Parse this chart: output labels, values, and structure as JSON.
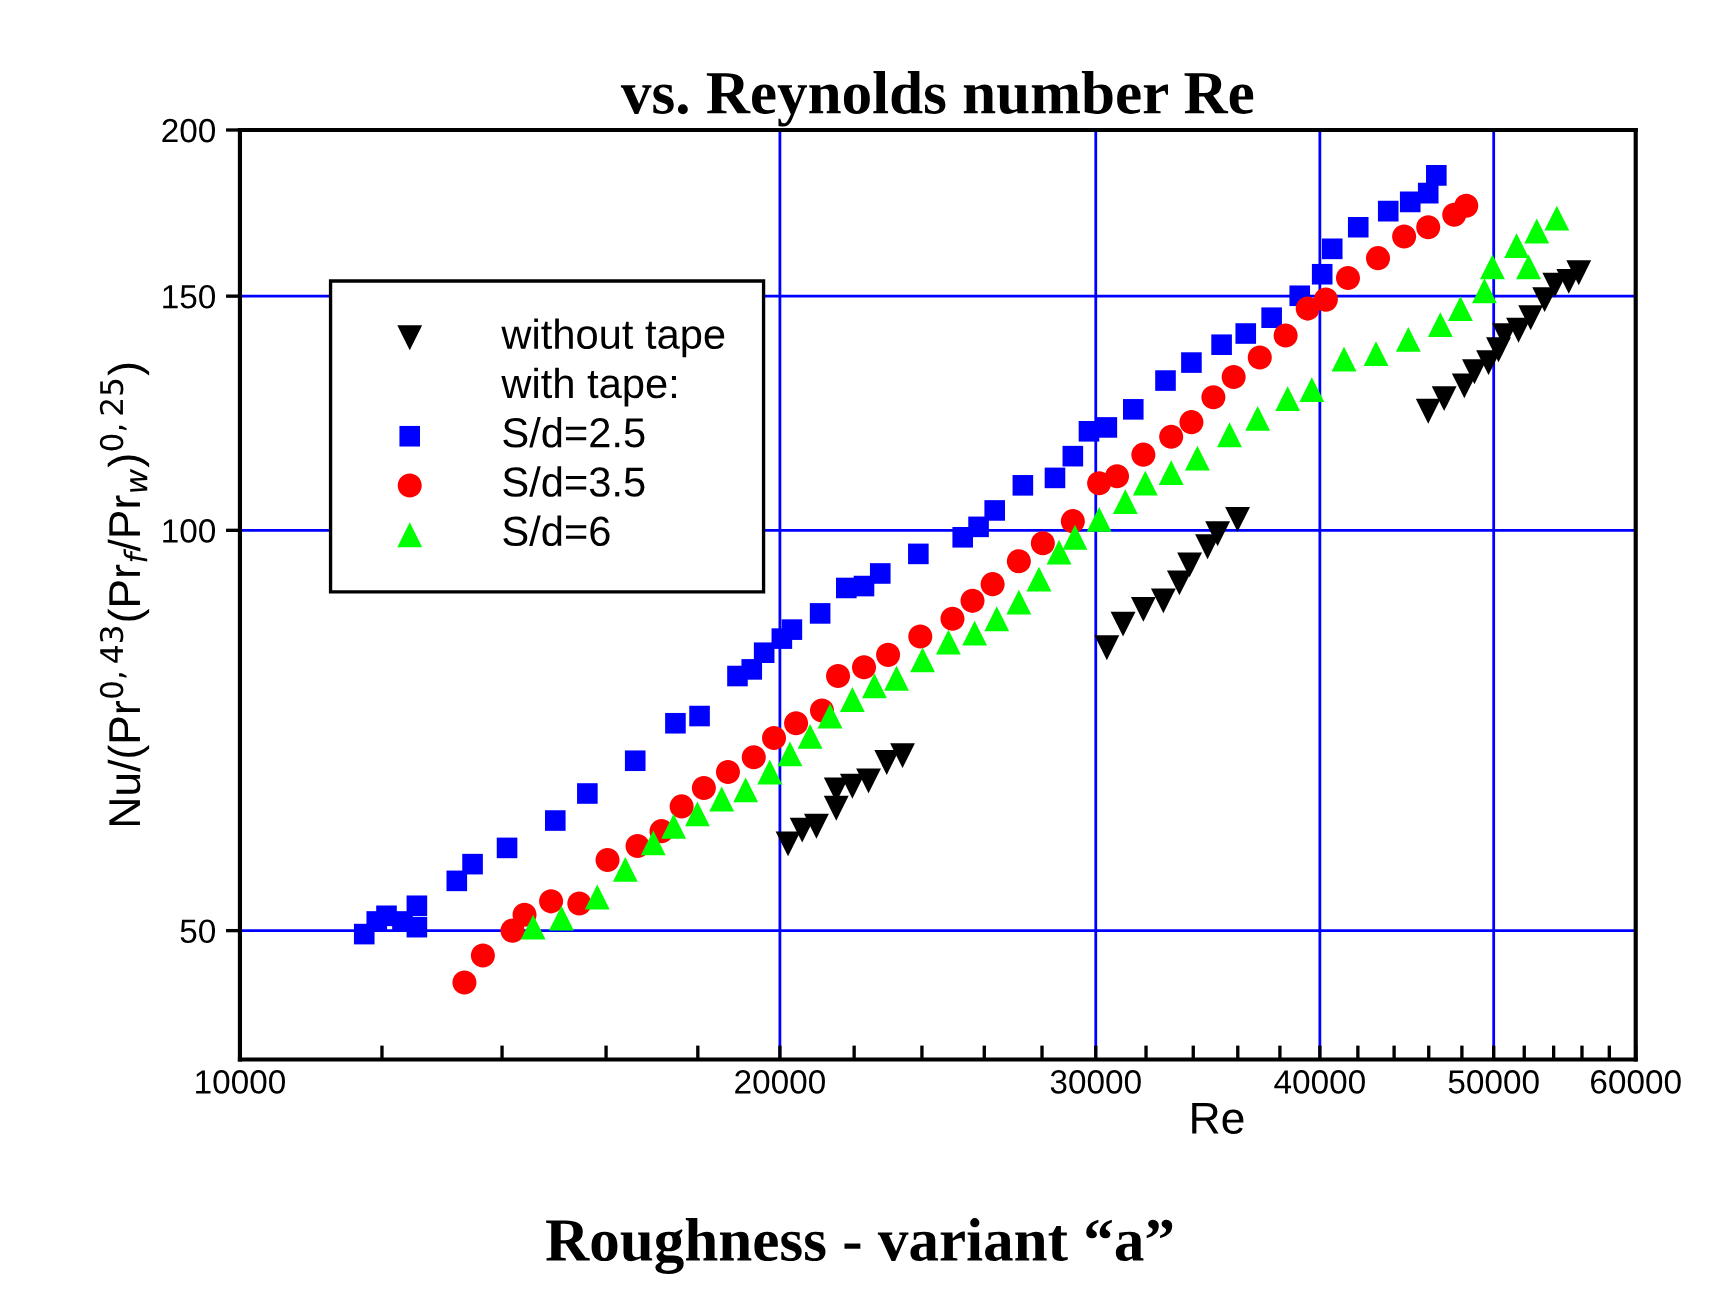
{
  "chart_data": {
    "type": "scatter",
    "title": "vs. Reynolds number Re",
    "xlabel": "Re",
    "ylabel": "Nu/(Pr$^{0,43}$(Pr$_{f}$/Pr$_{w}$)$^{0,25}$)",
    "annotations": [
      "with tape:",
      "Roughness - variant “a”"
    ],
    "log": "xy",
    "grid": true,
    "legend": "top left",
    "xlim": [
      10000,
      60000
    ],
    "ylim": [
      40,
      200
    ],
    "xticks": [
      10000,
      {
        "value": 12000,
        "label": null
      },
      {
        "value": 14000,
        "label": null
      },
      {
        "value": 16000,
        "label": null
      },
      {
        "value": 18000,
        "label": null
      },
      20000,
      {
        "value": 22000,
        "label": null
      },
      {
        "value": 24000,
        "label": null
      },
      {
        "value": 26000,
        "label": null
      },
      {
        "value": 28000,
        "label": null
      },
      30000,
      {
        "value": 32000,
        "label": null
      },
      {
        "value": 34000,
        "label": null
      },
      {
        "value": 36000,
        "label": null
      },
      {
        "value": 38000,
        "label": null
      },
      40000,
      {
        "value": 42000,
        "label": null
      },
      {
        "value": 44000,
        "label": null
      },
      {
        "value": 46000,
        "label": null
      },
      {
        "value": 48000,
        "label": null
      },
      50000,
      {
        "value": 52000,
        "label": null
      },
      {
        "value": 54000,
        "label": null
      },
      {
        "value": 56000,
        "label": null
      },
      {
        "value": 58000,
        "label": null
      },
      60000
    ],
    "yticks": [
      50,
      100,
      150,
      200
    ],
    "series": [
      {
        "name": "without tape",
        "color": "#000000",
        "marker": "triangle_down",
        "x": [
          20210,
          20580,
          20960,
          21500,
          21500,
          21950,
          22410,
          22940,
          23410,
          30430,
          31070,
          31890,
          32720,
          33400,
          33840,
          34630,
          35080,
          35990,
          45970,
          46920,
          48150,
          48780,
          49670,
          50310,
          50700,
          51620,
          52430,
          53380,
          54080,
          55060,
          55770
        ],
        "values": [
          58.1,
          59.5,
          59.9,
          61.8,
          63.8,
          64.2,
          64.8,
          66.9,
          67.7,
          81.6,
          85.0,
          87.2,
          88.5,
          91.3,
          94.2,
          97.2,
          99.4,
          101.9,
          122.9,
          125.6,
          128.4,
          131.6,
          133.7,
          136.7,
          140.1,
          141.4,
          144.5,
          149.1,
          152.9,
          153.9,
          156.2
        ]
      },
      {
        "name": "S/d=2.5",
        "color": "#0000ff",
        "marker": "square",
        "x": [
          11730,
          11920,
          12070,
          12320,
          12550,
          12550,
          13210,
          13480,
          14090,
          14990,
          15620,
          16610,
          17490,
          18040,
          18940,
          19290,
          19600,
          20050,
          20310,
          21060,
          21780,
          22280,
          22750,
          23890,
          25290,
          25810,
          26350,
          27320,
          28470,
          29130,
          29740,
          30430,
          31480,
          32810,
          33920,
          35260,
          36370,
          37600,
          38980,
          40120,
          40640,
          42020,
          43670,
          44920,
          45970,
          46450
        ],
        "values": [
          49.7,
          50.8,
          51.3,
          50.8,
          50.3,
          52.2,
          54.5,
          56.1,
          57.7,
          60.5,
          63.4,
          67.1,
          71.6,
          72.5,
          77.7,
          78.6,
          80.9,
          82.9,
          84.2,
          86.6,
          90.5,
          90.8,
          92.8,
          96.0,
          98.8,
          100.6,
          103.5,
          108.1,
          109.5,
          113.7,
          118.7,
          119.5,
          123.3,
          129.6,
          133.7,
          137.9,
          140.6,
          144.5,
          150.1,
          155.8,
          162.8,
          169.0,
          173.8,
          176.6,
          179.3,
          184.9
        ]
      },
      {
        "name": "S/d=3.5",
        "color": "#ff0000",
        "marker": "circle",
        "x": [
          13340,
          13660,
          14190,
          14410,
          14910,
          15460,
          16030,
          16660,
          17180,
          17630,
          18140,
          18710,
          19340,
          19850,
          20420,
          21110,
          21550,
          22280,
          22980,
          23950,
          24960,
          25610,
          26280,
          27180,
          28030,
          29130,
          30130,
          30830,
          31890,
          33050,
          33920,
          34890,
          35810,
          37030,
          38280,
          39380,
          40310,
          41470,
          43100,
          44570,
          45970,
          47530,
          48270
        ],
        "values": [
          45.7,
          47.9,
          50.0,
          51.4,
          52.6,
          52.4,
          56.5,
          57.9,
          59.4,
          62.0,
          64.0,
          65.8,
          67.5,
          69.8,
          71.6,
          73.2,
          77.7,
          78.9,
          80.6,
          83.2,
          85.8,
          88.5,
          91.1,
          94.8,
          97.8,
          101.6,
          108.5,
          109.8,
          114.0,
          117.6,
          120.6,
          125.9,
          130.4,
          134.9,
          140.1,
          146.8,
          149.1,
          154.8,
          160.2,
          166.3,
          169.0,
          172.7,
          175.4
        ]
      },
      {
        "name": "S/d=6",
        "color": "#00ff00",
        "marker": "triangle",
        "x": [
          14570,
          15110,
          15820,
          16400,
          17000,
          17450,
          17990,
          18560,
          19140,
          19740,
          20260,
          20790,
          21330,
          21950,
          22580,
          23230,
          24020,
          24830,
          25680,
          26420,
          27180,
          27890,
          28620,
          29210,
          30130,
          31160,
          31970,
          33050,
          34180,
          35620,
          36930,
          38380,
          39590,
          41260,
          42990,
          44810,
          46690,
          47910,
          49410,
          49920,
          51490,
          52290,
          52840,
          54220
        ],
        "values": [
          50.3,
          51.1,
          53.0,
          55.6,
          58.2,
          59.9,
          61.2,
          62.8,
          63.8,
          65.8,
          67.9,
          70.0,
          72.5,
          74.6,
          76.4,
          77.4,
          79.9,
          82.4,
          83.7,
          85.8,
          88.3,
          91.9,
          96.3,
          98.8,
          101.9,
          105.1,
          108.5,
          110.5,
          113.3,
          118.0,
          121.4,
          125.6,
          127.6,
          134.5,
          135.8,
          139.2,
          142.8,
          146.8,
          151.4,
          157.8,
          163.7,
          157.8,
          167.9,
          171.7
        ]
      }
    ]
  }
}
